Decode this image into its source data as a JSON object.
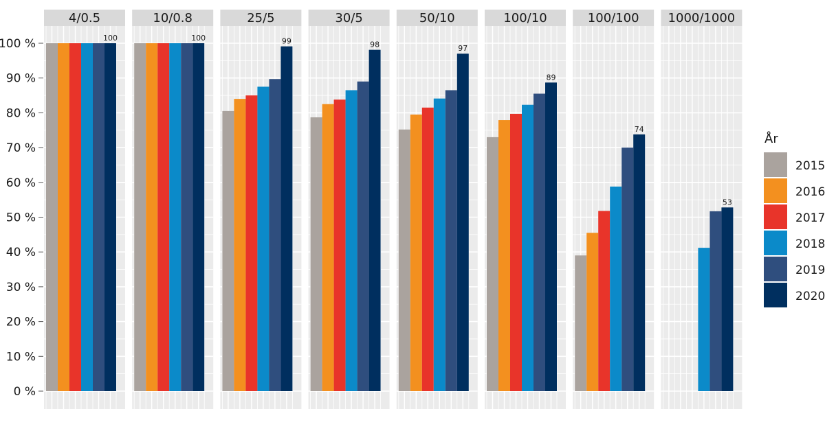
{
  "chart_data": {
    "type": "bar",
    "facets": [
      "4/0.5",
      "10/0.8",
      "25/5",
      "30/5",
      "50/10",
      "100/10",
      "100/100",
      "1000/1000"
    ],
    "series": [
      {
        "name": "2015",
        "color": "#aaa39e",
        "values": [
          100,
          100,
          80.5,
          78.7,
          75.2,
          73.0,
          39.0,
          null
        ]
      },
      {
        "name": "2016",
        "color": "#f3901f",
        "values": [
          100,
          100,
          84.0,
          82.5,
          79.5,
          77.9,
          45.5,
          null
        ]
      },
      {
        "name": "2017",
        "color": "#e8342a",
        "values": [
          100,
          100,
          85.0,
          83.8,
          81.5,
          79.7,
          51.8,
          null
        ]
      },
      {
        "name": "2018",
        "color": "#0b8ac9",
        "values": [
          100,
          100,
          87.5,
          86.5,
          84.1,
          82.3,
          58.8,
          41.2
        ]
      },
      {
        "name": "2019",
        "color": "#2f4e7e",
        "values": [
          100,
          100,
          89.7,
          89.0,
          86.5,
          85.5,
          70.0,
          51.7
        ]
      },
      {
        "name": "2020",
        "color": "#002f5f",
        "values": [
          100,
          100,
          99.1,
          98.1,
          97.0,
          88.7,
          73.8,
          52.8
        ]
      }
    ],
    "data_labels": [
      "100",
      "100",
      "99",
      "98",
      "97",
      "89",
      "74",
      "53"
    ],
    "y_ticks": [
      "0 %",
      "10 %",
      "20 %",
      "30 %",
      "40 %",
      "50 %",
      "60 %",
      "70 %",
      "80 %",
      "90 %",
      "100 %"
    ],
    "ylim": [
      0,
      100
    ],
    "legend_title": "År",
    "legend_position": "right",
    "grid": true,
    "colors": {
      "panel_bg": "#ebebeb",
      "grid": "#ffffff",
      "strip_bg": "#d9d9d9"
    }
  }
}
